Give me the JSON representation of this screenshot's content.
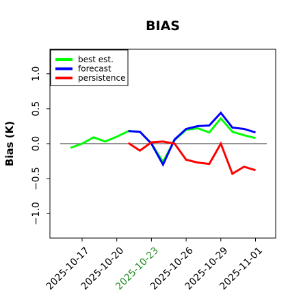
{
  "chart_data": {
    "type": "line",
    "title": "BIAS",
    "ylabel": "Bias (K)",
    "xlabel": "",
    "ylim": [
      -1.35,
      1.35
    ],
    "yticks": [
      -1.0,
      -0.5,
      0.0,
      0.5,
      1.0
    ],
    "ytick_labels": [
      "−1.0",
      "−0.5",
      "0.0",
      "0.5",
      "1.0"
    ],
    "xlim": [
      "2025-10-15",
      "2025-11-03"
    ],
    "xticks": [
      "2025-10-17",
      "2025-10-20",
      "2025-10-23",
      "2025-10-26",
      "2025-10-29",
      "2025-11-01"
    ],
    "xtick_labels": [
      "2025-10-17",
      "2025-10-20",
      "2025-10-23",
      "2025-10-26",
      "2025-10-29",
      "2025-11-01"
    ],
    "highlighted_xtick": "2025-10-23",
    "highlight_color": "#228B22",
    "zero_line": true,
    "grid": false,
    "legend_position": "top-left",
    "series": [
      {
        "name": "best est.",
        "color": "#00ff00",
        "x": [
          "2025-10-16",
          "2025-10-17",
          "2025-10-18",
          "2025-10-19",
          "2025-10-20",
          "2025-10-21",
          "2025-10-22",
          "2025-10-23",
          "2025-10-24",
          "2025-10-25",
          "2025-10-26",
          "2025-10-27",
          "2025-10-28",
          "2025-10-29",
          "2025-10-30",
          "2025-10-31",
          "2025-11-01"
        ],
        "values": [
          -0.06,
          0.0,
          0.09,
          0.03,
          0.1,
          0.18,
          0.17,
          0.0,
          -0.26,
          0.05,
          0.2,
          0.22,
          0.16,
          0.36,
          0.17,
          0.12,
          0.08
        ]
      },
      {
        "name": "forecast",
        "color": "#0000ff",
        "x": [
          "2025-10-21",
          "2025-10-22",
          "2025-10-23",
          "2025-10-24",
          "2025-10-25",
          "2025-10-26",
          "2025-10-27",
          "2025-10-28",
          "2025-10-29",
          "2025-10-30",
          "2025-10-31",
          "2025-11-01"
        ],
        "values": [
          0.18,
          0.17,
          0.0,
          -0.3,
          0.06,
          0.21,
          0.25,
          0.26,
          0.44,
          0.23,
          0.21,
          0.16
        ]
      },
      {
        "name": "persistence",
        "color": "#ff0000",
        "x": [
          "2025-10-21",
          "2025-10-22",
          "2025-10-23",
          "2025-10-24",
          "2025-10-25",
          "2025-10-26",
          "2025-10-27",
          "2025-10-28",
          "2025-10-29",
          "2025-10-30",
          "2025-10-31",
          "2025-11-01"
        ],
        "values": [
          0.01,
          -0.1,
          0.02,
          0.03,
          0.0,
          -0.23,
          -0.27,
          -0.29,
          0.0,
          -0.43,
          -0.33,
          -0.38
        ]
      }
    ]
  }
}
